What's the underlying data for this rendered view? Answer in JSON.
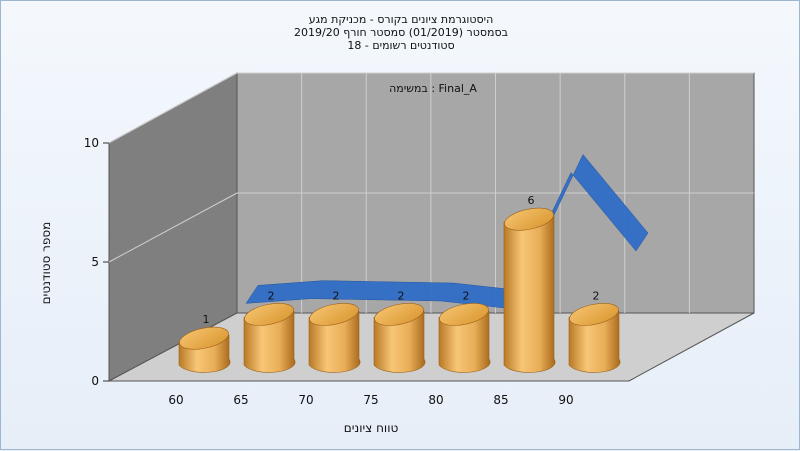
{
  "title_lines": [
    "היסטוגרמת ציונים בקורס - מכניקת מגע",
    "בסמסטר  (01/2019)  סמסטר חורף 2019/20",
    "סטודנטים רשומים - 18"
  ],
  "chart_data": {
    "type": "bar",
    "task_label": "במשימה : Final_A",
    "categories": [
      "60",
      "65",
      "70",
      "75",
      "80",
      "85",
      "90"
    ],
    "values": [
      1,
      2,
      2,
      2,
      2,
      6,
      2
    ],
    "trend_curve": [
      2,
      2.2,
      2.15,
      2.1,
      1.8,
      7.5,
      4.2
    ],
    "xlabel": "טווח ציונים",
    "ylabel": "מספר סטודנטים",
    "ylim": [
      0,
      10
    ],
    "yticks": [
      0,
      5,
      10
    ],
    "grid": true,
    "colors": {
      "bar": "#e3a448",
      "curve": "#2f6ec7",
      "wall": "#a7a7a7",
      "side_wall": "#7f7f7f",
      "floor": "#cfcfcf"
    }
  }
}
